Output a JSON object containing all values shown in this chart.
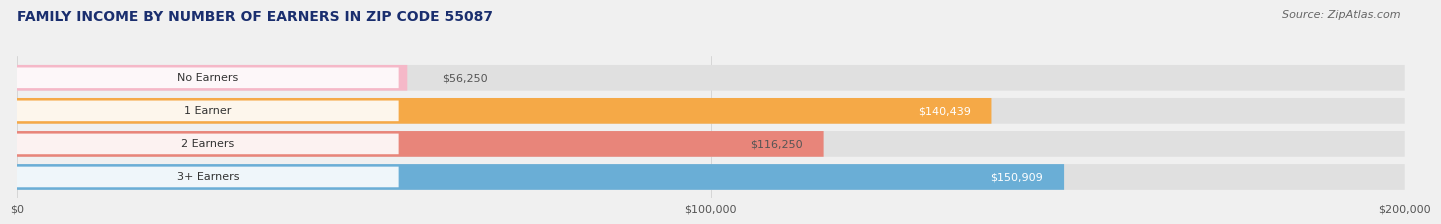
{
  "title": "FAMILY INCOME BY NUMBER OF EARNERS IN ZIP CODE 55087",
  "source": "Source: ZipAtlas.com",
  "categories": [
    "No Earners",
    "1 Earner",
    "2 Earners",
    "3+ Earners"
  ],
  "values": [
    56250,
    140439,
    116250,
    150909
  ],
  "bar_colors": [
    "#f5b8c8",
    "#f5a947",
    "#e8857a",
    "#6aaed6"
  ],
  "label_colors": [
    "#555555",
    "#ffffff",
    "#555555",
    "#ffffff"
  ],
  "xlim": [
    0,
    200000
  ],
  "xticks": [
    0,
    100000,
    200000
  ],
  "xtick_labels": [
    "$0",
    "$100,000",
    "$200,000"
  ],
  "background_color": "#f0f0f0",
  "bar_background_color": "#e0e0e0",
  "title_color": "#1a2e6e",
  "source_color": "#666666",
  "title_fontsize": 10,
  "source_fontsize": 8,
  "label_fontsize": 8,
  "category_fontsize": 8,
  "tick_fontsize": 8
}
